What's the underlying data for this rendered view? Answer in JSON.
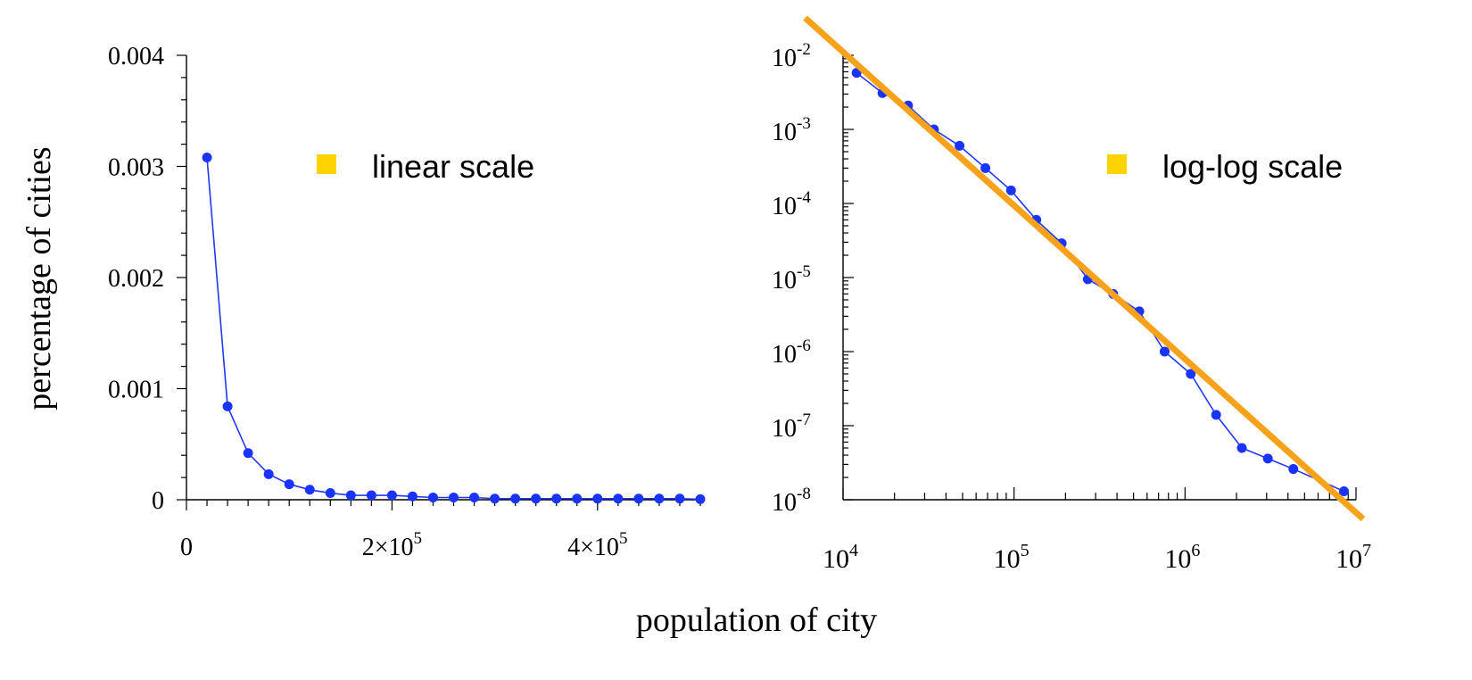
{
  "shared_xlabel": "population of city",
  "shared_ylabel": "percentage of cities",
  "colors": {
    "series": "#1a34ff",
    "fit_line": "#f7a21b",
    "legend_marker": "#ffd200"
  },
  "chart_data": [
    {
      "type": "line",
      "scale": "linear",
      "title": "",
      "legend": {
        "label": "linear scale",
        "marker": "square"
      },
      "xlim": [
        0,
        500000
      ],
      "ylim": [
        0,
        0.004
      ],
      "xticks": [
        {
          "v": 0,
          "base": "0",
          "exp": ""
        },
        {
          "v": 200000,
          "base": "2×10",
          "exp": "5"
        },
        {
          "v": 400000,
          "base": "4×10",
          "exp": "5"
        }
      ],
      "yticks": [
        {
          "v": 0,
          "label": "0"
        },
        {
          "v": 0.001,
          "label": "0.001"
        },
        {
          "v": 0.002,
          "label": "0.002"
        },
        {
          "v": 0.003,
          "label": "0.003"
        },
        {
          "v": 0.004,
          "label": "0.004"
        }
      ],
      "series": [
        {
          "x": [
            20000,
            40000,
            60000,
            80000,
            100000,
            120000,
            140000,
            160000,
            180000,
            200000,
            220000,
            240000,
            260000,
            280000,
            300000,
            320000,
            340000,
            360000,
            380000,
            400000,
            420000,
            440000,
            460000,
            480000,
            500000
          ],
          "y": [
            0.00308,
            0.00084,
            0.00042,
            0.00023,
            0.00014,
            9e-05,
            6e-05,
            4e-05,
            4e-05,
            4e-05,
            3e-05,
            2e-05,
            2e-05,
            2e-05,
            1e-05,
            1e-05,
            1e-05,
            1e-05,
            1e-05,
            1e-05,
            1e-05,
            1e-05,
            1e-05,
            1e-05,
            5e-06
          ]
        }
      ]
    },
    {
      "type": "line",
      "scale": "log-log",
      "title": "",
      "legend": {
        "label": "log-log scale",
        "marker": "square"
      },
      "xlim": [
        10000,
        10000000
      ],
      "ylim": [
        1e-08,
        0.01
      ],
      "xticks": [
        {
          "v": 10000,
          "base": "10",
          "exp": "4"
        },
        {
          "v": 100000,
          "base": "10",
          "exp": "5"
        },
        {
          "v": 1000000,
          "base": "10",
          "exp": "6"
        },
        {
          "v": 10000000,
          "base": "10",
          "exp": "7"
        }
      ],
      "yticks": [
        {
          "v": 1e-08,
          "base": "10",
          "exp": "-8"
        },
        {
          "v": 1e-07,
          "base": "10",
          "exp": "-7"
        },
        {
          "v": 1e-06,
          "base": "10",
          "exp": "-6"
        },
        {
          "v": 1e-05,
          "base": "10",
          "exp": "-5"
        },
        {
          "v": 0.0001,
          "base": "10",
          "exp": "-4"
        },
        {
          "v": 0.001,
          "base": "10",
          "exp": "-3"
        },
        {
          "v": 0.01,
          "base": "10",
          "exp": "-2"
        }
      ],
      "series": [
        {
          "x": [
            12000,
            17000,
            24000,
            34000,
            48000,
            68000,
            96000,
            135000,
            190000,
            270000,
            380000,
            540000,
            760000,
            1080000,
            1520000,
            2150000,
            3050000,
            4300000,
            8500000
          ],
          "y": [
            0.0058,
            0.0031,
            0.0021,
            0.001,
            0.0006,
            0.0003,
            0.00015,
            6e-05,
            2.9e-05,
            9.5e-06,
            6e-06,
            3.5e-06,
            1e-06,
            5e-07,
            1.4e-07,
            5e-08,
            3.6e-08,
            2.6e-08,
            1.3e-08
          ]
        }
      ],
      "fit_line": {
        "x": [
          6000,
          11000000
        ],
        "y": [
          0.032,
          5.5e-09
        ]
      }
    }
  ]
}
